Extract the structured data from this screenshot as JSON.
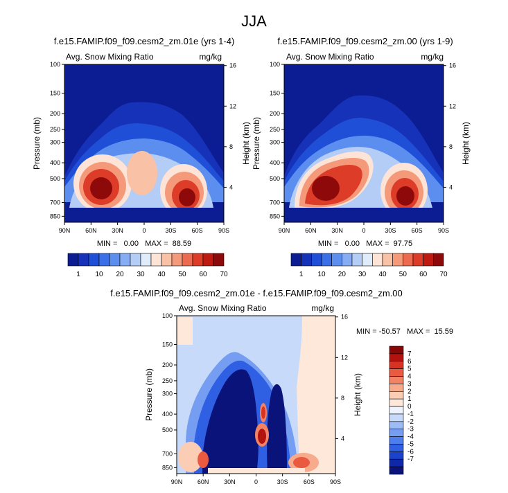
{
  "page_title": "JJA",
  "colors": {
    "main_scale": [
      "#0c1c93",
      "#1532b8",
      "#1f4fd6",
      "#3a6fe8",
      "#5c8ef0",
      "#86adf4",
      "#b4cdf7",
      "#e0ebfb",
      "#fde4d6",
      "#f9c2a6",
      "#f49a7b",
      "#ec6b50",
      "#dc3c28",
      "#be1a12",
      "#8e0a0a"
    ],
    "diff_scale": [
      "#09137a",
      "#0f27a9",
      "#1a42cc",
      "#2f5fe2",
      "#4e7eee",
      "#759ef3",
      "#9dbcf6",
      "#c8daf9",
      "#eef3fd",
      "#fde8da",
      "#fbcdb5",
      "#f7aa8c",
      "#f28365",
      "#ea5a40",
      "#d93222",
      "#b3120e",
      "#870707"
    ]
  },
  "chart_data": [
    {
      "type": "heatmap",
      "panel_title": "f.e15.FAMIP.f09_f09.cesm2_zm.01e (yrs 1-4)",
      "left_label": "Avg. Snow Mixing Ratio",
      "right_label": "mg/kg",
      "xlabel": "",
      "ylabel": "Pressure (mb)",
      "y2label": "Height (km)",
      "x_ticks": [
        "90N",
        "60N",
        "30N",
        "0",
        "30S",
        "60S",
        "90S"
      ],
      "y_ticks": [
        "100",
        "150",
        "200",
        "250",
        "300",
        "400",
        "500",
        "700",
        "850"
      ],
      "y2_ticks": [
        "16",
        "12",
        "8",
        "4"
      ],
      "min_max": "MIN =   0.00   MAX =  88.59",
      "peak_value": 88.59,
      "colorbar_labels": [
        "1",
        "10",
        "20",
        "30",
        "40",
        "50",
        "60",
        "70"
      ]
    },
    {
      "type": "heatmap",
      "panel_title": "f.e15.FAMIP.f09_f09.cesm2_zm.00 (yrs 1-9)",
      "left_label": "Avg. Snow Mixing Ratio",
      "right_label": "mg/kg",
      "xlabel": "",
      "ylabel": "Pressure (mb)",
      "y2label": "Height (km)",
      "x_ticks": [
        "90N",
        "60N",
        "30N",
        "0",
        "30S",
        "60S",
        "90S"
      ],
      "y_ticks": [
        "100",
        "150",
        "200",
        "250",
        "300",
        "400",
        "500",
        "700",
        "850"
      ],
      "y2_ticks": [
        "16",
        "12",
        "8",
        "4"
      ],
      "min_max": "MIN =   0.00   MAX =  97.75",
      "peak_value": 97.75,
      "colorbar_labels": [
        "1",
        "10",
        "20",
        "30",
        "40",
        "50",
        "60",
        "70"
      ]
    },
    {
      "type": "heatmap",
      "panel_title": "f.e15.FAMIP.f09_f09.cesm2_zm.01e - f.e15.FAMIP.f09_f09.cesm2_zm.00",
      "left_label": "Avg. Snow Mixing Ratio",
      "right_label": "mg/kg",
      "xlabel": "",
      "ylabel": "Pressure (mb)",
      "y2label": "Height (km)",
      "x_ticks": [
        "90N",
        "60N",
        "30N",
        "0",
        "30S",
        "60S",
        "90S"
      ],
      "y_ticks": [
        "100",
        "150",
        "200",
        "250",
        "300",
        "400",
        "500",
        "700",
        "850"
      ],
      "y2_ticks": [
        "16",
        "12",
        "8",
        "4"
      ],
      "min_max": "MIN = -50.57   MAX =  15.59",
      "min_value": -50.57,
      "max_value": 15.59,
      "colorbar_labels": [
        "7",
        "6",
        "5",
        "4",
        "3",
        "2",
        "1",
        "0",
        "-1",
        "-2",
        "-3",
        "-4",
        "-5",
        "-6",
        "-7"
      ]
    }
  ]
}
